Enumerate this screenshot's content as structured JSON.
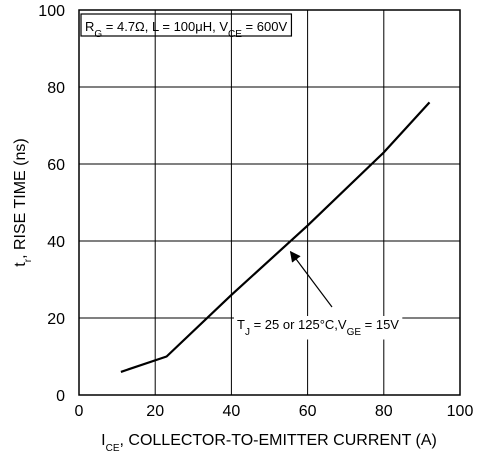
{
  "chart_data": {
    "type": "line",
    "xlim": [
      0,
      100
    ],
    "ylim": [
      0,
      100
    ],
    "x_ticks": [
      0,
      20,
      40,
      60,
      80,
      100
    ],
    "y_ticks": [
      0,
      20,
      40,
      60,
      80,
      100
    ],
    "grid": true,
    "xlabel": {
      "main": "I",
      "sub": "CE",
      "rest": ", COLLECTOR-TO-EMITTER CURRENT (A)"
    },
    "ylabel": {
      "main": "t",
      "sub": "r",
      "rest": ", RISE TIME (ns)"
    },
    "conditions_box": {
      "parts": [
        {
          "t": "R"
        },
        {
          "t": "G",
          "sub": true
        },
        {
          "t": " = 4.7Ω, L = 100μH, V"
        },
        {
          "t": "CE",
          "sub": true
        },
        {
          "t": " = 600V"
        }
      ]
    },
    "annotation": {
      "parts": [
        {
          "t": "T"
        },
        {
          "t": "J",
          "sub": true
        },
        {
          "t": " = 25 or 125°C,V"
        },
        {
          "t": "GE",
          "sub": true
        },
        {
          "t": " = 15V"
        }
      ],
      "arrow_target": [
        55,
        38
      ]
    },
    "series": [
      {
        "values": [
          [
            11,
            6
          ],
          [
            23,
            10
          ],
          [
            40,
            26
          ],
          [
            60,
            44
          ],
          [
            80,
            63
          ],
          [
            92,
            76
          ]
        ]
      }
    ]
  }
}
